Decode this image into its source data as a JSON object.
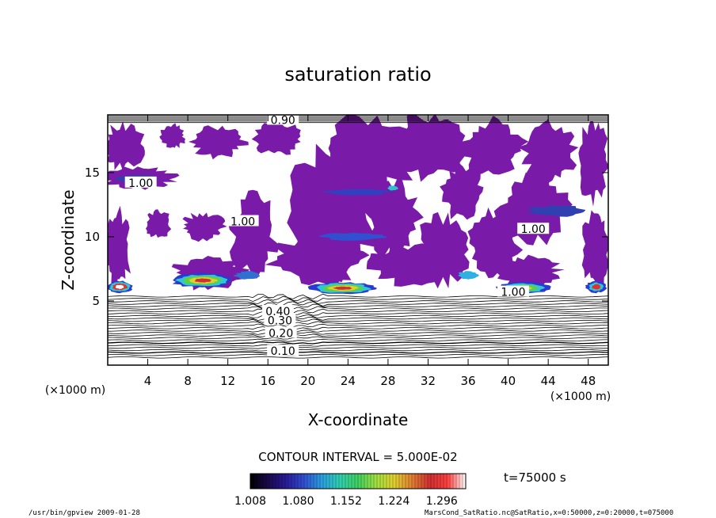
{
  "chart_data": {
    "type": "heatmap",
    "title": "saturation ratio",
    "xlabel": "X-coordinate",
    "ylabel": "Z-coordinate",
    "x_unit": "(×1000 m)",
    "y_unit": "(×1000 m)",
    "xlim": [
      0,
      50
    ],
    "ylim": [
      0,
      19.5
    ],
    "x_ticks": [
      4,
      8,
      12,
      16,
      20,
      24,
      28,
      32,
      36,
      40,
      44,
      48
    ],
    "y_ticks": [
      5,
      10,
      15
    ],
    "contour_interval_label": "CONTOUR INTERVAL = 5.000E-02",
    "time_label": "t=75000 s",
    "colorbar": {
      "min": 1.008,
      "max": 1.332,
      "tick_labels": [
        "1.008",
        "1.080",
        "1.152",
        "1.224",
        "1.296"
      ],
      "colors": [
        "#000000",
        "#1a0a4d",
        "#2a1a9a",
        "#3050d0",
        "#2aa0e0",
        "#30d0b0",
        "#40d060",
        "#a0e040",
        "#e0d030",
        "#e08030",
        "#d03030",
        "#ff4040",
        "#ffffff"
      ]
    },
    "contour_labels": [
      {
        "text": "0.10",
        "x": 17.5,
        "y": 1.1
      },
      {
        "text": "0.20",
        "x": 17.3,
        "y": 2.5
      },
      {
        "text": "0.30",
        "x": 17.2,
        "y": 3.5
      },
      {
        "text": "0.40",
        "x": 17.0,
        "y": 4.2
      },
      {
        "text": "1.00",
        "x": 3.3,
        "y": 14.2
      },
      {
        "text": "1.00",
        "x": 13.5,
        "y": 11.2
      },
      {
        "text": "1.00",
        "x": 42.5,
        "y": 10.6
      },
      {
        "text": "1.00",
        "x": 40.5,
        "y": 5.7
      },
      {
        "text": "0.90",
        "x": 17.5,
        "y": 19.1
      }
    ],
    "footer_left": "/usr/bin/gpview   2009-01-28",
    "footer_right": "MarsCond_SatRatio.nc@SatRatio,x=0:50000,z=0:20000,t=075000"
  }
}
